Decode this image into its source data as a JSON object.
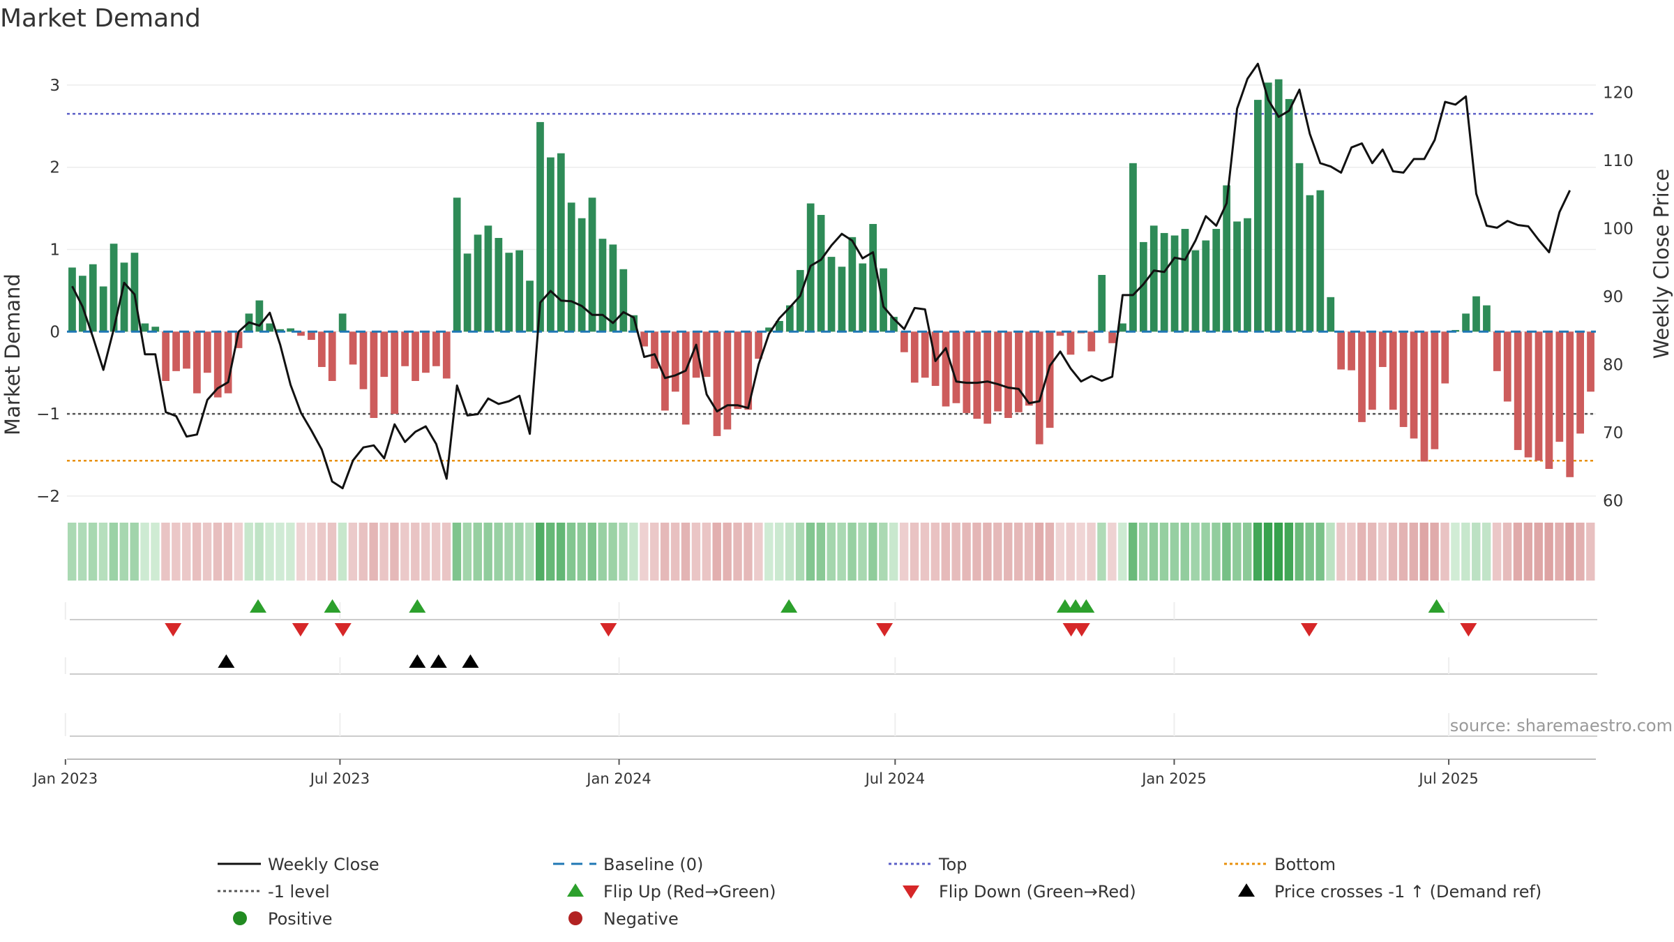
{
  "chart_data": {
    "type": "bar+line",
    "title": "Market Demand",
    "ylabel_left": "Market Demand",
    "ylabel_right": "Weekly Close Price",
    "source": "source: sharemaestro.com",
    "ylim_left": [
      -2.2,
      3.3
    ],
    "ylim_right": [
      58.9,
      126.4
    ],
    "left_ticks": [
      3,
      2,
      1,
      0,
      -1,
      -2
    ],
    "left_tick_labels": [
      "3",
      "2",
      "1",
      "0",
      "−1",
      "−2"
    ],
    "right_ticks": [
      120,
      110,
      100,
      90,
      80,
      70,
      60
    ],
    "right_tick_labels": [
      "120",
      "110",
      "100",
      "90",
      "80",
      "70",
      "60"
    ],
    "x_start": "2023-01-02",
    "x_end": "2025-10-06",
    "date_ticks": [
      {
        "date": "2023-01-01",
        "label": "Jan 2023"
      },
      {
        "date": "2023-07-01",
        "label": "Jul 2023"
      },
      {
        "date": "2024-01-01",
        "label": "Jan 2024"
      },
      {
        "date": "2024-07-01",
        "label": "Jul 2024"
      },
      {
        "date": "2025-01-01",
        "label": "Jan 2025"
      },
      {
        "date": "2025-07-01",
        "label": "Jul 2025"
      }
    ],
    "reference_lines": [
      {
        "name": "Top",
        "value": 2.65,
        "color": "#5b5fc7"
      },
      {
        "name": "-1 level",
        "value": -1.0,
        "color": "#555555"
      },
      {
        "name": "Bottom",
        "value": -1.57,
        "color": "#e8900c"
      }
    ],
    "colors": {
      "positive": "#2e8b57",
      "negative": "#cd5c5c",
      "price": "#111111",
      "baseline": "#1f77b4",
      "flip_up": "#2ca02c",
      "flip_down": "#d62728",
      "cross": "#000000"
    },
    "demand": [
      0.78,
      0.68,
      0.82,
      0.55,
      1.07,
      0.84,
      0.96,
      0.1,
      0.06,
      -0.6,
      -0.48,
      -0.45,
      -0.75,
      -0.5,
      -0.8,
      -0.75,
      -0.2,
      0.22,
      0.38,
      0.1,
      0.03,
      0.04,
      -0.05,
      -0.1,
      -0.43,
      -0.6,
      0.22,
      -0.4,
      -0.7,
      -1.05,
      -0.55,
      -1.0,
      -0.42,
      -0.6,
      -0.5,
      -0.42,
      -0.57,
      1.63,
      0.95,
      1.18,
      1.29,
      1.14,
      0.96,
      0.99,
      0.62,
      2.55,
      2.12,
      2.17,
      1.57,
      1.38,
      1.63,
      1.13,
      1.06,
      0.76,
      0.2,
      -0.18,
      -0.45,
      -0.96,
      -0.73,
      -1.13,
      -0.56,
      -0.55,
      -1.27,
      -1.19,
      -0.94,
      -0.95,
      -0.33,
      0.05,
      0.13,
      0.32,
      0.75,
      1.56,
      1.42,
      0.91,
      0.79,
      1.15,
      0.83,
      1.31,
      0.77,
      0.18,
      -0.25,
      -0.62,
      -0.56,
      -0.66,
      -0.91,
      -0.87,
      -0.99,
      -1.06,
      -1.12,
      -0.97,
      -1.05,
      -0.98,
      -0.9,
      -1.37,
      -1.17,
      -0.05,
      -0.28,
      -0.02,
      -0.24,
      0.69,
      -0.14,
      0.1,
      2.05,
      1.09,
      1.29,
      1.2,
      1.17,
      1.25,
      0.99,
      1.11,
      1.25,
      1.78,
      1.34,
      1.38,
      2.82,
      3.03,
      3.07,
      2.83,
      2.05,
      1.66,
      1.72,
      0.42,
      -0.46,
      -0.47,
      -1.1,
      -0.95,
      -0.43,
      -0.95,
      -1.16,
      -1.3,
      -1.58,
      -1.43,
      -0.63,
      0.02,
      0.22,
      0.43,
      0.32,
      -0.48,
      -0.85,
      -1.44,
      -1.53,
      -1.57,
      -1.67,
      -1.34,
      -1.77,
      -1.24,
      -0.73
    ],
    "close": [
      91.5,
      88.5,
      84,
      79.2,
      85.2,
      92,
      90.3,
      81.5,
      81.5,
      73,
      72.4,
      69.4,
      69.7,
      74.8,
      76.5,
      77.4,
      84.8,
      86.2,
      85.7,
      87.6,
      82.9,
      77,
      72.9,
      70.3,
      67.5,
      62.8,
      61.8,
      65.9,
      67.8,
      68.1,
      66.2,
      71.2,
      68.6,
      70.1,
      70.9,
      68.3,
      63.2,
      76.9,
      72.5,
      72.7,
      75,
      74.2,
      74.6,
      75.4,
      69.8,
      89.1,
      90.8,
      89.4,
      89.3,
      88.6,
      87.3,
      87.3,
      86.1,
      87.7,
      86.9,
      81.1,
      81.5,
      78,
      78.4,
      79.1,
      82.9,
      75.6,
      73.1,
      74,
      74,
      73.6,
      80,
      84.5,
      86.8,
      88.4,
      90.1,
      94.5,
      95.4,
      97.5,
      99.2,
      98.2,
      95.6,
      96.5,
      88.5,
      86.7,
      85.2,
      88.3,
      88.1,
      80.5,
      82.4,
      77.5,
      77.3,
      77.3,
      77.5,
      77.1,
      76.6,
      76.4,
      74.3,
      74.6,
      79.8,
      81.9,
      79.4,
      77.5,
      78.3,
      77.6,
      78.2,
      90.2,
      90.2,
      91.8,
      93.8,
      93.6,
      95.7,
      95.4,
      98.2,
      101.8,
      100.4,
      103.7,
      117.6,
      122,
      124.2,
      118.9,
      116.4,
      117.3,
      120.4,
      113.9,
      109.6,
      109.1,
      108.2,
      111.9,
      112.5,
      109.6,
      111.6,
      108.4,
      108.2,
      110.2,
      110.2,
      113,
      118.6,
      118.2,
      119.4,
      105.1,
      100.4,
      100.1,
      101.1,
      100.5,
      100.3,
      98.3,
      96.5,
      102.4,
      105.6
    ],
    "strip_demand": [
      0.78,
      0.68,
      0.82,
      0.55,
      1.07,
      0.84,
      0.96,
      0.1,
      0.06,
      -0.6,
      -0.48,
      -0.45,
      -0.75,
      -0.5,
      -0.8,
      -0.75,
      -0.2,
      0.22,
      0.38,
      0.1,
      0.03,
      0.04,
      -0.05,
      -0.1,
      -0.43,
      -0.6,
      0.22,
      -0.4,
      -0.7,
      -1.05,
      -0.55,
      -1.0,
      -0.42,
      -0.6,
      -0.5,
      -0.42,
      -0.57,
      1.63,
      0.95,
      1.18,
      1.29,
      1.14,
      0.96,
      0.99,
      0.62,
      2.55,
      2.12,
      2.17,
      1.57,
      1.38,
      1.63,
      1.13,
      1.06,
      0.76,
      0.2,
      -0.18,
      -0.45,
      -0.96,
      -0.73,
      -1.13,
      -0.56,
      -0.55,
      -1.27,
      -1.19,
      -0.94,
      -0.95,
      -0.33,
      0.05,
      0.13,
      0.32,
      0.75,
      1.56,
      1.42,
      0.91,
      0.79,
      1.15,
      0.83,
      1.31,
      0.77,
      0.18,
      -0.25,
      -0.62,
      -0.56,
      -0.66,
      -0.91,
      -0.87,
      -0.99,
      -1.06,
      -1.12,
      -0.97,
      -1.05,
      -0.98,
      -0.9,
      -1.37,
      -1.17,
      -0.05,
      -0.28,
      -0.02,
      -0.24,
      0.69,
      -0.14,
      0.1,
      2.05,
      1.09,
      1.29,
      1.2,
      1.17,
      1.25,
      0.99,
      1.11,
      1.25,
      1.78,
      1.34,
      1.38,
      2.82,
      3.03,
      3.07,
      2.83,
      2.05,
      1.66,
      1.72,
      0.42,
      -0.46,
      -0.47,
      -1.1,
      -0.95,
      -0.43,
      -0.95,
      -1.16,
      -1.3,
      -1.58,
      -1.43,
      -0.63,
      0.02,
      0.22,
      0.43,
      0.32,
      -0.48,
      -0.85,
      -1.44,
      -1.53,
      -1.57,
      -1.67,
      -1.34,
      -1.77,
      -1.24,
      -0.73
    ],
    "flip_up_dates": [
      "2023-05-08",
      "2023-06-26",
      "2023-08-21",
      "2024-04-22",
      "2024-10-21",
      "2024-10-28",
      "2024-11-04",
      "2025-06-23"
    ],
    "flip_down_dates": [
      "2023-03-13",
      "2023-06-05",
      "2023-07-03",
      "2023-12-25",
      "2024-06-24",
      "2024-10-25",
      "2024-11-01",
      "2025-03-31",
      "2025-07-14"
    ],
    "cross_dates": [
      "2023-04-17",
      "2023-08-21",
      "2023-09-04",
      "2023-09-25"
    ],
    "legend": [
      {
        "key": "weekly_close",
        "label": "Weekly Close",
        "marker": "line",
        "color": "#111111"
      },
      {
        "key": "baseline",
        "label": "Baseline (0)",
        "marker": "dash",
        "color": "#1f77b4"
      },
      {
        "key": "top",
        "label": "Top",
        "marker": "dots",
        "color": "#5b5fc7"
      },
      {
        "key": "bottom",
        "label": "Bottom",
        "marker": "dots",
        "color": "#e8900c"
      },
      {
        "key": "minus1",
        "label": "-1 level",
        "marker": "dots",
        "color": "#555555"
      },
      {
        "key": "flip_up",
        "label": "Flip Up (Red→Green)",
        "marker": "tri-up",
        "color": "#2ca02c"
      },
      {
        "key": "flip_down",
        "label": "Flip Down (Green→Red)",
        "marker": "tri-down",
        "color": "#d62728"
      },
      {
        "key": "cross",
        "label": "Price crosses -1 ↑ (Demand ref)",
        "marker": "tri-up",
        "color": "#000000"
      },
      {
        "key": "positive",
        "label": "Positive",
        "marker": "circle",
        "color": "#228b22"
      },
      {
        "key": "negative",
        "label": "Negative",
        "marker": "circle",
        "color": "#b22222"
      }
    ]
  }
}
